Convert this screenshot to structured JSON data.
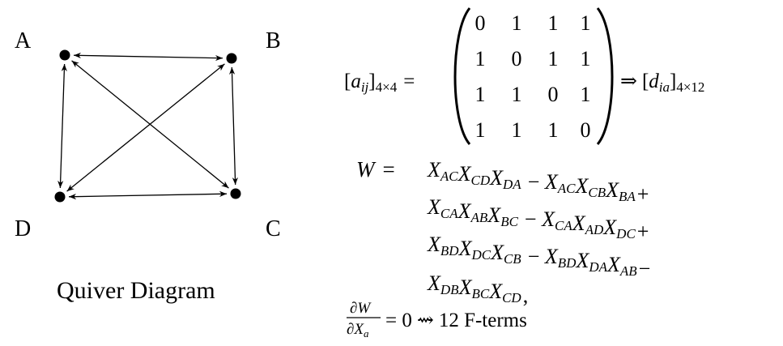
{
  "quiver": {
    "caption": "Quiver Diagram",
    "nodes": [
      {
        "id": "A",
        "label": "A"
      },
      {
        "id": "B",
        "label": "B"
      },
      {
        "id": "C",
        "label": "C"
      },
      {
        "id": "D",
        "label": "D"
      }
    ],
    "edges": [
      {
        "from": "A",
        "to": "B"
      },
      {
        "from": "B",
        "to": "A"
      },
      {
        "from": "A",
        "to": "C"
      },
      {
        "from": "C",
        "to": "A"
      },
      {
        "from": "A",
        "to": "D"
      },
      {
        "from": "D",
        "to": "A"
      },
      {
        "from": "B",
        "to": "C"
      },
      {
        "from": "C",
        "to": "B"
      },
      {
        "from": "B",
        "to": "D"
      },
      {
        "from": "D",
        "to": "B"
      },
      {
        "from": "C",
        "to": "D"
      },
      {
        "from": "D",
        "to": "C"
      }
    ]
  },
  "matrix": {
    "lhs_symbol": "a",
    "lhs_sub": "ij",
    "lhs_dim": "4×4",
    "rows": [
      [
        "0",
        "1",
        "1",
        "1"
      ],
      [
        "1",
        "0",
        "1",
        "1"
      ],
      [
        "1",
        "1",
        "0",
        "1"
      ],
      [
        "1",
        "1",
        "1",
        "0"
      ]
    ],
    "implies": "⇒",
    "rhs_symbol": "d",
    "rhs_sub": "ia",
    "rhs_dim": "4×12"
  },
  "superpotential": {
    "lhs": "W",
    "lines": [
      {
        "terms": [
          {
            "s": "+",
            "f": [
              [
                "X",
                "AC"
              ],
              [
                "X",
                "CD"
              ],
              [
                "X",
                "DA"
              ]
            ]
          },
          {
            "s": "−",
            "f": [
              [
                "X",
                "AC"
              ],
              [
                "X",
                "CB"
              ],
              [
                "X",
                "BA"
              ]
            ]
          }
        ],
        "tail": "+"
      },
      {
        "terms": [
          {
            "s": "+",
            "f": [
              [
                "X",
                "CA"
              ],
              [
                "X",
                "AB"
              ],
              [
                "X",
                "BC"
              ]
            ]
          },
          {
            "s": "−",
            "f": [
              [
                "X",
                "CA"
              ],
              [
                "X",
                "AD"
              ],
              [
                "X",
                "DC"
              ]
            ]
          }
        ],
        "tail": "+"
      },
      {
        "terms": [
          {
            "s": "+",
            "f": [
              [
                "X",
                "BD"
              ],
              [
                "X",
                "DC"
              ],
              [
                "X",
                "CB"
              ]
            ]
          },
          {
            "s": "−",
            "f": [
              [
                "X",
                "BD"
              ],
              [
                "X",
                "DA"
              ],
              [
                "X",
                "AB"
              ]
            ]
          }
        ],
        "tail": "−"
      },
      {
        "terms": [
          {
            "s": "+",
            "f": [
              [
                "X",
                "DB"
              ],
              [
                "X",
                "BC"
              ],
              [
                "X",
                "CD"
              ]
            ]
          }
        ],
        "tail": ","
      }
    ]
  },
  "fterms": {
    "num": "∂W",
    "den_partial": "∂X",
    "den_sub": "a",
    "rhs": "= 0",
    "arrow": "⇝",
    "text": "12 F-terms"
  }
}
